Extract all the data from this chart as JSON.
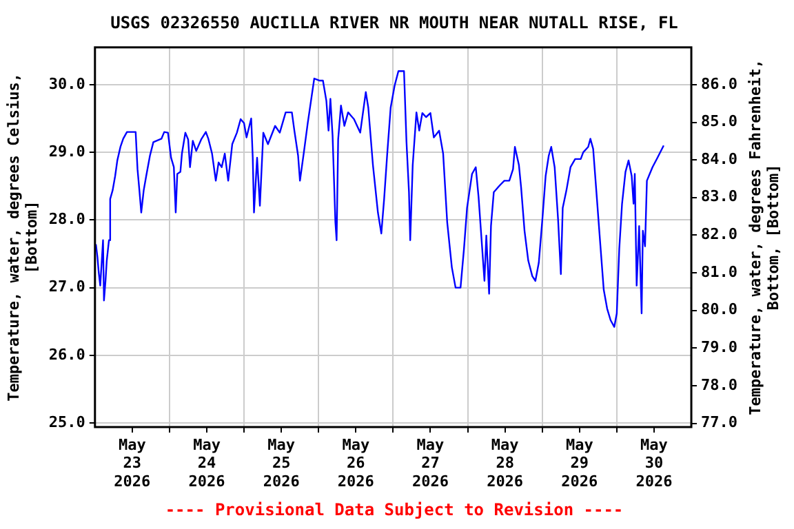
{
  "chart_data": {
    "type": "line",
    "title": "USGS 02326550 AUCILLA RIVER NR MOUTH NEAR NUTALL RISE, FL",
    "ylabel": "Temperature, water, degrees Celsius,\n[Bottom]",
    "y2label": "Temperature, water, degrees Fahrenheit,\nBottom, [Bottom]",
    "annotations": [
      "---- Provisional Data Subject to Revision ----"
    ],
    "xlim": [
      "2026-05-23",
      "2026-05-31"
    ],
    "xticks": [
      {
        "value": "2026-05-23T12:00",
        "label": "May\n23\n2026"
      },
      {
        "value": "2026-05-24",
        "label": null
      },
      {
        "value": "2026-05-24T12:00",
        "label": "May\n24\n2026"
      },
      {
        "value": "2026-05-25",
        "label": null
      },
      {
        "value": "2026-05-25T12:00",
        "label": "May\n25\n2026"
      },
      {
        "value": "2026-05-26",
        "label": null
      },
      {
        "value": "2026-05-26T12:00",
        "label": "May\n26\n2026"
      },
      {
        "value": "2026-05-27",
        "label": null
      },
      {
        "value": "2026-05-27T12:00",
        "label": "May\n27\n2026"
      },
      {
        "value": "2026-05-28",
        "label": null
      },
      {
        "value": "2026-05-28T12:00",
        "label": "May\n28\n2026"
      },
      {
        "value": "2026-05-29",
        "label": null
      },
      {
        "value": "2026-05-29T12:00",
        "label": "May\n29\n2026"
      },
      {
        "value": "2026-05-30",
        "label": null
      },
      {
        "value": "2026-05-30T12:00",
        "label": "May\n30\n2026"
      }
    ],
    "ylim": [
      24.94,
      30.55
    ],
    "yticks": [
      {
        "value": 25,
        "label": "25.0"
      },
      {
        "value": 26,
        "label": "26.0"
      },
      {
        "value": 27,
        "label": "27.0"
      },
      {
        "value": 28,
        "label": "28.0"
      },
      {
        "value": 29,
        "label": "29.0"
      },
      {
        "value": 30,
        "label": "30.0"
      }
    ],
    "y2lim": [
      76.9,
      86.99
    ],
    "y2ticks": [
      {
        "value": 77,
        "label": "77.0"
      },
      {
        "value": 78,
        "label": "78.0"
      },
      {
        "value": 79,
        "label": "79.0"
      },
      {
        "value": 80,
        "label": "80.0"
      },
      {
        "value": 81,
        "label": "81.0"
      },
      {
        "value": 82,
        "label": "82.0"
      },
      {
        "value": 83,
        "label": "83.0"
      },
      {
        "value": 84,
        "label": "84.0"
      },
      {
        "value": 85,
        "label": "85.0"
      },
      {
        "value": 86,
        "label": "86.0"
      }
    ],
    "grid": true,
    "legend": false,
    "marker": "none",
    "line_style": "solid",
    "series": [
      {
        "color": "#0000ff",
        "x": [
          "2026-05-23T00:18",
          "2026-05-23T00:48",
          "2026-05-23T01:12",
          "2026-05-23T01:42",
          "2026-05-23T02:12",
          "2026-05-23T02:36",
          "2026-05-23T02:54",
          "2026-05-23T03:24",
          "2026-05-23T03:48",
          "2026-05-23T04:30",
          "2026-05-23T04:54",
          "2026-05-23T05:42",
          "2026-05-23T06:30",
          "2026-05-23T07:12",
          "2026-05-23T08:12",
          "2026-05-23T09:06",
          "2026-05-23T10:18",
          "2026-05-23T13:06",
          "2026-05-23T13:42",
          "2026-05-23T14:18",
          "2026-05-23T14:54",
          "2026-05-23T15:42",
          "2026-05-23T16:30",
          "2026-05-23T17:42",
          "2026-05-23T18:48",
          "2026-05-23T21:24",
          "2026-05-23T22:18",
          "2026-05-23T23:30",
          "2026-05-24T00:30",
          "2026-05-24T01:24",
          "2026-05-24T02:00",
          "2026-05-24T02:30",
          "2026-05-24T03:30",
          "2026-05-24T04:00",
          "2026-05-24T05:06",
          "2026-05-24T06:00",
          "2026-05-24T06:36",
          "2026-05-24T07:30",
          "2026-05-24T08:36",
          "2026-05-24T10:12",
          "2026-05-24T11:42",
          "2026-05-24T12:30",
          "2026-05-24T13:42",
          "2026-05-24T14:54",
          "2026-05-24T15:48",
          "2026-05-24T16:48",
          "2026-05-24T17:48",
          "2026-05-24T18:54",
          "2026-05-24T20:12",
          "2026-05-24T21:42",
          "2026-05-24T22:54",
          "2026-05-25T00:00",
          "2026-05-25T00:48",
          "2026-05-25T02:18",
          "2026-05-25T02:48",
          "2026-05-25T03:12",
          "2026-05-25T04:12",
          "2026-05-25T05:06",
          "2026-05-25T06:12",
          "2026-05-25T07:42",
          "2026-05-25T10:00",
          "2026-05-25T11:30",
          "2026-05-25T13:24",
          "2026-05-25T15:24",
          "2026-05-25T16:12",
          "2026-05-25T17:24",
          "2026-05-25T18:00",
          "2026-05-25T19:12",
          "2026-05-25T20:30",
          "2026-05-25T22:36",
          "2026-05-26T00:12",
          "2026-05-26T01:24",
          "2026-05-26T02:30",
          "2026-05-26T03:12",
          "2026-05-26T03:48",
          "2026-05-26T04:30",
          "2026-05-26T05:24",
          "2026-05-26T05:48",
          "2026-05-26T06:18",
          "2026-05-26T07:12",
          "2026-05-26T08:18",
          "2026-05-26T09:30",
          "2026-05-26T11:24",
          "2026-05-26T13:24",
          "2026-05-26T15:12",
          "2026-05-26T16:00",
          "2026-05-26T17:30",
          "2026-05-26T19:06",
          "2026-05-26T20:12",
          "2026-05-26T21:06",
          "2026-05-26T22:06",
          "2026-05-26T23:12",
          "2026-05-27T00:30",
          "2026-05-27T01:42",
          "2026-05-27T03:30",
          "2026-05-27T04:18",
          "2026-05-27T05:06",
          "2026-05-27T05:30",
          "2026-05-27T06:18",
          "2026-05-27T07:30",
          "2026-05-27T08:24",
          "2026-05-27T09:24",
          "2026-05-27T10:36",
          "2026-05-27T12:00",
          "2026-05-27T13:06",
          "2026-05-27T14:48",
          "2026-05-27T16:06",
          "2026-05-27T17:24",
          "2026-05-27T18:54",
          "2026-05-27T20:06",
          "2026-05-27T21:42",
          "2026-05-27T22:48",
          "2026-05-27T23:48",
          "2026-05-28T01:24",
          "2026-05-28T02:36",
          "2026-05-28T03:30",
          "2026-05-28T05:24",
          "2026-05-28T06:00",
          "2026-05-28T06:54",
          "2026-05-28T07:30",
          "2026-05-28T08:24",
          "2026-05-28T10:18",
          "2026-05-28T11:48",
          "2026-05-28T13:24",
          "2026-05-28T14:36",
          "2026-05-28T15:12",
          "2026-05-28T16:30",
          "2026-05-28T17:12",
          "2026-05-28T18:18",
          "2026-05-28T19:30",
          "2026-05-28T20:48",
          "2026-05-28T21:48",
          "2026-05-28T22:54",
          "2026-05-29T00:06",
          "2026-05-29T01:06",
          "2026-05-29T02:06",
          "2026-05-29T02:54",
          "2026-05-29T04:00",
          "2026-05-29T05:06",
          "2026-05-29T06:00",
          "2026-05-29T06:36",
          "2026-05-29T07:48",
          "2026-05-29T09:06",
          "2026-05-29T10:36",
          "2026-05-29T12:24",
          "2026-05-29T13:12",
          "2026-05-29T14:48",
          "2026-05-29T15:30",
          "2026-05-29T16:24",
          "2026-05-29T17:24",
          "2026-05-29T18:36",
          "2026-05-29T19:48",
          "2026-05-29T20:54",
          "2026-05-29T22:00",
          "2026-05-29T23:12",
          "2026-05-30T00:00",
          "2026-05-30T00:48",
          "2026-05-30T01:42",
          "2026-05-30T02:48",
          "2026-05-30T03:48",
          "2026-05-30T04:48",
          "2026-05-30T05:24",
          "2026-05-30T05:48",
          "2026-05-30T06:24",
          "2026-05-30T07:12",
          "2026-05-30T08:00",
          "2026-05-30T08:24",
          "2026-05-30T09:06",
          "2026-05-30T09:42",
          "2026-05-30T11:30",
          "2026-05-30T13:06",
          "2026-05-30T15:06"
        ],
        "values": [
          27.64,
          27.45,
          27.23,
          27.03,
          27.4,
          27.7,
          26.81,
          27.1,
          27.4,
          27.7,
          28.31,
          28.44,
          28.65,
          28.88,
          29.08,
          29.2,
          29.3,
          29.3,
          28.75,
          28.44,
          28.11,
          28.44,
          28.65,
          28.95,
          29.15,
          29.2,
          29.3,
          29.29,
          28.92,
          28.78,
          28.11,
          28.68,
          28.71,
          28.98,
          29.29,
          29.19,
          28.78,
          29.17,
          29.02,
          29.19,
          29.3,
          29.2,
          28.98,
          28.58,
          28.85,
          28.78,
          28.98,
          28.58,
          29.12,
          29.29,
          29.49,
          29.43,
          29.22,
          29.5,
          28.92,
          28.11,
          28.92,
          28.21,
          29.29,
          29.12,
          29.39,
          29.29,
          29.59,
          29.59,
          29.32,
          28.95,
          28.58,
          28.98,
          29.43,
          30.09,
          30.06,
          30.06,
          29.76,
          29.32,
          29.79,
          29.25,
          27.97,
          27.7,
          29.19,
          29.69,
          29.39,
          29.59,
          29.49,
          29.29,
          29.89,
          29.66,
          28.81,
          28.11,
          27.8,
          28.31,
          28.98,
          29.66,
          29.99,
          30.2,
          30.2,
          29.15,
          28.41,
          27.7,
          28.81,
          29.59,
          29.32,
          29.58,
          29.52,
          29.58,
          29.22,
          29.32,
          28.98,
          27.97,
          27.3,
          27.0,
          27.0,
          27.57,
          28.18,
          28.68,
          28.78,
          28.34,
          27.1,
          27.77,
          26.91,
          27.91,
          28.41,
          28.51,
          28.58,
          28.58,
          28.75,
          29.08,
          28.81,
          28.48,
          27.84,
          27.4,
          27.17,
          27.1,
          27.37,
          28.04,
          28.65,
          28.95,
          29.08,
          28.78,
          28.01,
          27.2,
          28.18,
          28.44,
          28.78,
          28.9,
          28.9,
          29.0,
          29.08,
          29.2,
          29.05,
          28.44,
          27.7,
          26.97,
          26.69,
          26.52,
          26.42,
          26.62,
          27.57,
          28.24,
          28.71,
          28.88,
          28.65,
          28.24,
          28.68,
          27.03,
          27.91,
          26.62,
          27.84,
          27.61,
          28.58,
          28.78,
          28.92,
          29.1
        ]
      }
    ]
  }
}
